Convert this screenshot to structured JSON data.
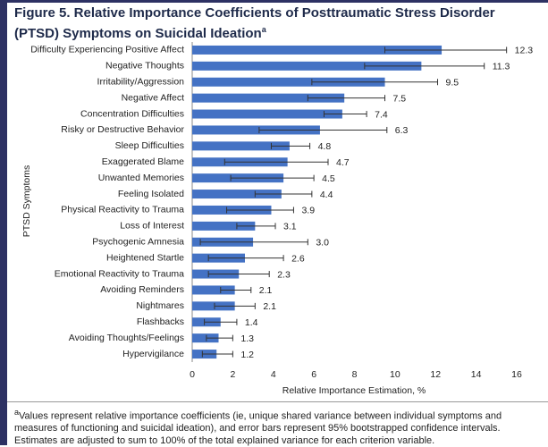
{
  "chart_data": {
    "type": "bar",
    "orientation": "horizontal",
    "title": "Figure 5. Relative Importance Coefficients of Posttraumatic Stress Disorder (PTSD) Symptoms on Suicidal Ideation",
    "title_marker": "a",
    "categories": [
      "Difficulty Experiencing Positive Affect",
      "Negative Thoughts",
      "Irritability/Aggression",
      "Negative Affect",
      "Concentration Difficulties",
      "Risky or Destructive Behavior",
      "Sleep Difficulties",
      "Exaggerated Blame",
      "Unwanted Memories",
      "Feeling Isolated",
      "Physical Reactivity to Trauma",
      "Loss of Interest",
      "Psychogenic Amnesia",
      "Heightened Startle",
      "Emotional Reactivity to Trauma",
      "Avoiding Reminders",
      "Nightmares",
      "Flashbacks",
      "Avoiding Thoughts/Feelings",
      "Hypervigilance"
    ],
    "values": [
      12.3,
      11.3,
      9.5,
      7.5,
      7.4,
      6.3,
      4.8,
      4.7,
      4.5,
      4.4,
      3.9,
      3.1,
      3.0,
      2.6,
      2.3,
      2.1,
      2.1,
      1.4,
      1.3,
      1.2
    ],
    "value_labels": [
      "12.3",
      "11.3",
      "9.5",
      "7.5",
      "7.4",
      "6.3",
      "4.8",
      "4.7",
      "4.5",
      "4.4",
      "3.9",
      "3.1",
      "3.0",
      "2.6",
      "2.3",
      "2.1",
      "2.1",
      "1.4",
      "1.3",
      "1.2"
    ],
    "ci_lower": [
      9.5,
      8.5,
      5.9,
      5.7,
      6.5,
      3.3,
      3.9,
      1.6,
      1.9,
      3.1,
      1.7,
      2.2,
      0.4,
      0.8,
      0.8,
      1.4,
      1.1,
      0.6,
      0.7,
      0.5
    ],
    "ci_upper": [
      15.5,
      14.4,
      12.1,
      9.5,
      8.6,
      9.6,
      5.8,
      6.7,
      6.0,
      5.9,
      5.0,
      4.1,
      5.7,
      4.5,
      3.8,
      2.9,
      3.1,
      2.2,
      2.0,
      2.0
    ],
    "color": "#4472c4",
    "xlim": [
      0,
      16
    ],
    "xticks": [
      0,
      2,
      4,
      6,
      8,
      10,
      12,
      14,
      16
    ],
    "xlabel": "Relative Importance Estimation, %",
    "ylabel": "PTSD Symptoms"
  },
  "footnote": {
    "marker": "a",
    "text": "Values represent relative importance coefficients (ie, unique shared variance between individual symptoms and measures of functioning and suicidal ideation), and error bars represent 95% bootstrapped confidence intervals. Estimates are adjusted to sum to 100% of the total explained variance for each criterion variable."
  }
}
